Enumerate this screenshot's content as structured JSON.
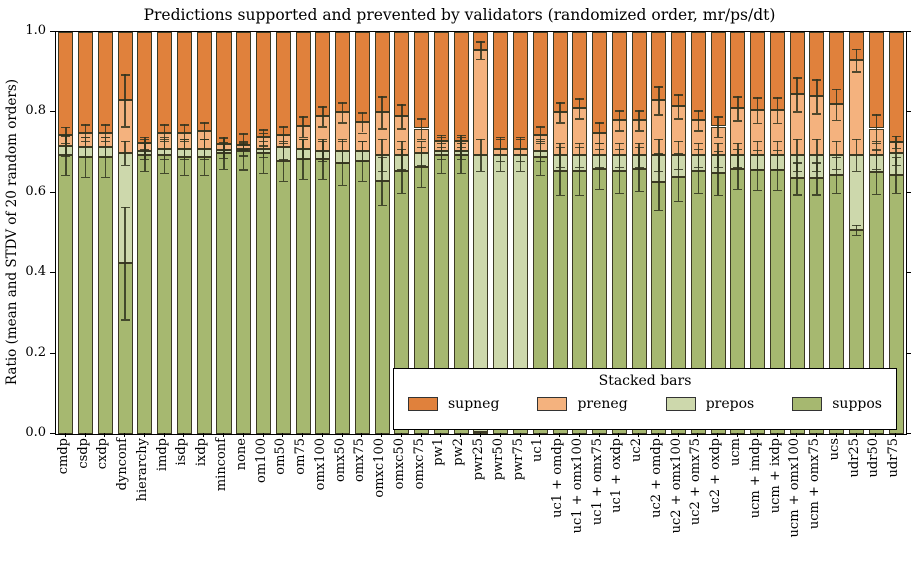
{
  "title": "Predictions supported and prevented by validators (randomized order, mr/ps/dt)",
  "ylabel": "Ratio (mean and STDV of 20 random orders)",
  "yticks": [
    "0.0",
    "0.2",
    "0.4",
    "0.6",
    "0.8",
    "1.0"
  ],
  "legend": {
    "title": "Stacked bars",
    "entries": [
      {
        "label": "supneg",
        "color": "#e0813c"
      },
      {
        "label": "preneg",
        "color": "#f4b27e"
      },
      {
        "label": "prepos",
        "color": "#cdd8ac"
      },
      {
        "label": "suppos",
        "color": "#a6b870"
      }
    ]
  },
  "chart_data": {
    "type": "bar",
    "stacked": true,
    "title": "Predictions supported and prevented by validators (randomized order, mr/ps/dt)",
    "xlabel": "",
    "ylabel": "Ratio (mean and STDV of 20 random orders)",
    "ylim": [
      0.0,
      1.0
    ],
    "grid": false,
    "legend_position": "lower center inside axes",
    "categories": [
      "cmdp",
      "csdp",
      "cxdp",
      "dynconf",
      "hierarchy",
      "imdp",
      "isdp",
      "ixdp",
      "minconf",
      "none",
      "om100",
      "om50",
      "om75",
      "omx100",
      "omx50",
      "omx75",
      "omxc100",
      "omxc50",
      "omxc75",
      "pw1",
      "pw2",
      "pwr25",
      "pwr50",
      "pwr75",
      "uc1",
      "uc1 + omdp",
      "uc1 + omx100",
      "uc1 + omx75",
      "uc1 + oxdp",
      "uc2",
      "uc2 + omdp",
      "uc2 + omx100",
      "uc2 + omx75",
      "uc2 + oxdp",
      "ucm",
      "ucm + imdp",
      "ucm + ixdp",
      "ucm + omx100",
      "ucm + omx75",
      "ucs",
      "udr25",
      "udr50",
      "udr75"
    ],
    "series": [
      {
        "name": "suppos",
        "color": "#a6b870",
        "values": [
          0.695,
          0.69,
          0.69,
          0.425,
          0.695,
          0.695,
          0.69,
          0.69,
          0.7,
          0.703,
          0.7,
          0.68,
          0.685,
          0.685,
          0.675,
          0.68,
          0.63,
          0.655,
          0.665,
          0.695,
          0.695,
          0.005,
          0.08,
          0.08,
          0.69,
          0.655,
          0.655,
          0.66,
          0.655,
          0.66,
          0.628,
          0.64,
          0.655,
          0.65,
          0.66,
          0.657,
          0.657,
          0.636,
          0.636,
          0.645,
          0.508,
          0.653,
          0.645
        ]
      },
      {
        "name": "prepos",
        "color": "#cdd8ac",
        "values": [
          0.022,
          0.025,
          0.025,
          0.275,
          0.01,
          0.015,
          0.02,
          0.02,
          0.007,
          0.005,
          0.01,
          0.035,
          0.025,
          0.02,
          0.03,
          0.025,
          0.065,
          0.04,
          0.035,
          0.01,
          0.01,
          0.69,
          0.615,
          0.615,
          0.015,
          0.04,
          0.04,
          0.035,
          0.04,
          0.035,
          0.067,
          0.055,
          0.04,
          0.045,
          0.035,
          0.038,
          0.038,
          0.059,
          0.059,
          0.05,
          0.186,
          0.042,
          0.055
        ]
      },
      {
        "name": "preneg",
        "color": "#f4b27e",
        "values": [
          0.027,
          0.035,
          0.035,
          0.13,
          0.02,
          0.04,
          0.04,
          0.045,
          0.015,
          0.01,
          0.028,
          0.03,
          0.055,
          0.085,
          0.095,
          0.07,
          0.105,
          0.095,
          0.06,
          0.025,
          0.025,
          0.26,
          0.015,
          0.015,
          0.04,
          0.105,
          0.115,
          0.055,
          0.085,
          0.085,
          0.135,
          0.12,
          0.085,
          0.07,
          0.115,
          0.111,
          0.111,
          0.15,
          0.145,
          0.125,
          0.236,
          0.065,
          0.027
        ]
      },
      {
        "name": "supneg",
        "color": "#e0813c",
        "values": [
          0.256,
          0.25,
          0.25,
          0.17,
          0.275,
          0.25,
          0.25,
          0.245,
          0.278,
          0.282,
          0.262,
          0.255,
          0.235,
          0.21,
          0.2,
          0.225,
          0.2,
          0.21,
          0.24,
          0.27,
          0.27,
          0.045,
          0.29,
          0.29,
          0.255,
          0.2,
          0.19,
          0.25,
          0.22,
          0.22,
          0.17,
          0.185,
          0.22,
          0.235,
          0.19,
          0.194,
          0.194,
          0.155,
          0.16,
          0.18,
          0.07,
          0.24,
          0.273
        ]
      }
    ],
    "errors_stdv": {
      "suppos_top": [
        0.05,
        0.05,
        0.05,
        0.14,
        0.04,
        0.045,
        0.045,
        0.045,
        0.04,
        0.045,
        0.05,
        0.05,
        0.05,
        0.05,
        0.055,
        0.05,
        0.06,
        0.055,
        0.05,
        0.045,
        0.045,
        0,
        0,
        0,
        0.045,
        0.06,
        0.06,
        0.05,
        0.055,
        0.055,
        0.07,
        0.06,
        0.055,
        0.055,
        0.05,
        0.05,
        0.05,
        0.04,
        0.04,
        0.045,
        0.013,
        0.055,
        0.045
      ],
      "prepos_top": [
        0.025,
        0.025,
        0.025,
        0.03,
        0.02,
        0.025,
        0.025,
        0.025,
        0.02,
        0.015,
        0.02,
        0.03,
        0.025,
        0.025,
        0.03,
        0.025,
        0.04,
        0.035,
        0.03,
        0.02,
        0.02,
        0.04,
        0.04,
        0.04,
        0.025,
        0.03,
        0.03,
        0.03,
        0.03,
        0.03,
        0.04,
        0.035,
        0.03,
        0.03,
        0.03,
        0.035,
        0.035,
        0.04,
        0.04,
        0.035,
        0.04,
        0.035,
        0.03
      ],
      "preneg_top": [
        0.02,
        0.02,
        0.02,
        0.065,
        0.015,
        0.02,
        0.02,
        0.02,
        0.015,
        0.01,
        0.02,
        0.02,
        0.025,
        0.025,
        0.025,
        0.025,
        0.04,
        0.03,
        0.025,
        0.015,
        0.015,
        0.022,
        0.03,
        0.03,
        0.02,
        0.025,
        0.025,
        0.025,
        0.025,
        0.025,
        0.035,
        0.03,
        0.025,
        0.025,
        0.03,
        0.032,
        0.032,
        0.042,
        0.042,
        0.038,
        0.028,
        0.035,
        0.015
      ]
    }
  }
}
